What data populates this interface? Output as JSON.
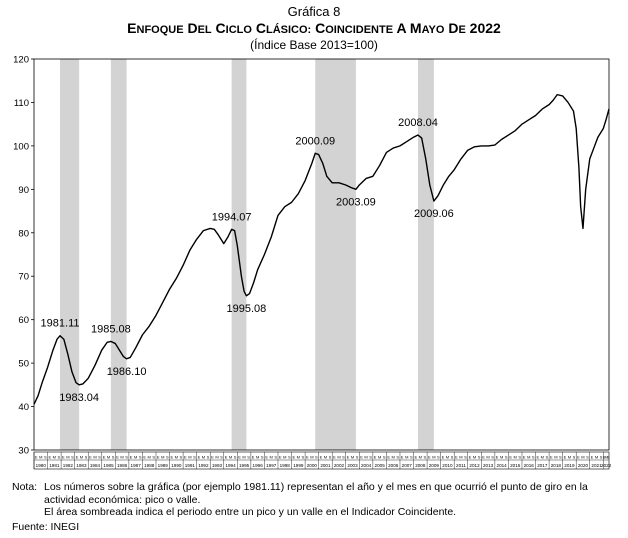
{
  "figure_label": "Gráfica 8",
  "title": "Enfoque del ciclo clásico: Coincidente a mayo de 2022",
  "subtitle": "(Índice Base 2013=100)",
  "note_label": "Nota:",
  "note_text": "Los números sobre la gráfica (por ejemplo 1981.11) representan el año y el mes en que ocurrió el punto de giro en la actividad económica: pico o valle.",
  "note_text_2": "El área sombreada indica el periodo entre un pico y un valle en el Indicador Coincidente.",
  "source": "Fuente: INEGI",
  "colors": {
    "line": "#000000",
    "shade": "#d3d3d3"
  },
  "chart_data": {
    "type": "line",
    "ylim": [
      30,
      120
    ],
    "y_ticks": [
      30,
      40,
      50,
      60,
      70,
      80,
      90,
      100,
      110,
      120
    ],
    "x_range": [
      1980.0,
      2022.42
    ],
    "x_sub_ticks": [
      "E",
      "M",
      "S"
    ],
    "x_tick_labels": [
      "1980",
      "1981",
      "1982",
      "1983",
      "1984",
      "1985",
      "1986",
      "1987",
      "1988",
      "1989",
      "1990",
      "1991",
      "1992",
      "1993",
      "1994",
      "1995",
      "1996",
      "1997",
      "1998",
      "1999",
      "2000",
      "2001",
      "2002",
      "2003",
      "2004",
      "2005",
      "2006",
      "2007",
      "2008",
      "2009",
      "2010",
      "2011",
      "2012",
      "2013",
      "2014",
      "2015",
      "2016",
      "2017",
      "2018",
      "2019",
      "2020",
      "2021",
      "2022"
    ],
    "shaded_periods": [
      [
        1981.92,
        1983.33
      ],
      [
        1985.67,
        1986.83
      ],
      [
        1994.58,
        1995.67
      ],
      [
        2000.75,
        2003.75
      ],
      [
        2008.33,
        2009.5
      ]
    ],
    "annotations": [
      {
        "text": "1981.11",
        "x": 1981.92,
        "y": 56.3,
        "pos": "above"
      },
      {
        "text": "1983.04",
        "x": 1983.33,
        "y": 45.0,
        "pos": "below"
      },
      {
        "text": "1985.08",
        "x": 1985.67,
        "y": 55.0,
        "pos": "above"
      },
      {
        "text": "1986.10",
        "x": 1986.83,
        "y": 51.0,
        "pos": "below"
      },
      {
        "text": "1994.07",
        "x": 1994.58,
        "y": 80.8,
        "pos": "above"
      },
      {
        "text": "1995.08",
        "x": 1995.67,
        "y": 65.5,
        "pos": "below"
      },
      {
        "text": "2000.09",
        "x": 2000.75,
        "y": 98.3,
        "pos": "above"
      },
      {
        "text": "2003.09",
        "x": 2003.75,
        "y": 90.0,
        "pos": "below"
      },
      {
        "text": "2008.04",
        "x": 2008.33,
        "y": 102.5,
        "pos": "above"
      },
      {
        "text": "2009.06",
        "x": 2009.5,
        "y": 87.3,
        "pos": "below"
      }
    ],
    "series": [
      {
        "x": [
          1980.0,
          1980.3,
          1980.6,
          1981.0,
          1981.4,
          1981.7,
          1981.92,
          1982.2,
          1982.5,
          1982.8,
          1983.1,
          1983.33,
          1983.6,
          1984.0,
          1984.5,
          1985.0,
          1985.4,
          1985.67,
          1986.0,
          1986.3,
          1986.6,
          1986.83,
          1987.1,
          1987.5,
          1988.0,
          1988.5,
          1989.0,
          1989.5,
          1990.0,
          1990.5,
          1991.0,
          1991.5,
          1992.0,
          1992.5,
          1993.0,
          1993.3,
          1993.6,
          1994.0,
          1994.3,
          1994.58,
          1994.8,
          1995.0,
          1995.3,
          1995.5,
          1995.67,
          1995.9,
          1996.2,
          1996.5,
          1997.0,
          1997.5,
          1998.0,
          1998.5,
          1999.0,
          1999.5,
          2000.0,
          2000.5,
          2000.75,
          2001.0,
          2001.3,
          2001.6,
          2002.0,
          2002.5,
          2003.0,
          2003.4,
          2003.75,
          2004.0,
          2004.5,
          2005.0,
          2005.5,
          2006.0,
          2006.5,
          2007.0,
          2007.5,
          2008.0,
          2008.33,
          2008.6,
          2008.9,
          2009.2,
          2009.5,
          2009.8,
          2010.2,
          2010.6,
          2011.0,
          2011.5,
          2012.0,
          2012.5,
          2013.0,
          2013.5,
          2014.0,
          2014.5,
          2015.0,
          2015.5,
          2016.0,
          2016.5,
          2017.0,
          2017.5,
          2018.0,
          2018.3,
          2018.6,
          2019.0,
          2019.4,
          2019.8,
          2020.0,
          2020.2,
          2020.33,
          2020.5,
          2020.7,
          2021.0,
          2021.3,
          2021.6,
          2022.0,
          2022.2,
          2022.42
        ],
        "y": [
          40.5,
          42.5,
          45.5,
          49,
          53,
          55.5,
          56.3,
          55.5,
          52,
          48,
          45.5,
          45,
          45.2,
          46.5,
          49.5,
          53,
          54.8,
          55,
          54.5,
          53,
          51.5,
          51,
          51.3,
          53.5,
          56.5,
          58.5,
          61,
          64,
          67,
          69.5,
          72.5,
          76,
          78.5,
          80.5,
          81,
          80.8,
          79.5,
          77.5,
          79,
          80.8,
          80.5,
          77,
          70,
          66.5,
          65.5,
          66,
          68.5,
          71.5,
          75,
          79,
          84,
          86,
          87,
          89,
          92,
          96,
          98.3,
          98,
          96,
          93,
          91.5,
          91.5,
          91,
          90.4,
          90,
          91,
          92.5,
          93,
          95.5,
          98.5,
          99.5,
          100,
          101,
          102,
          102.5,
          101.8,
          97,
          91,
          87.3,
          88.5,
          91,
          93,
          94.5,
          97,
          99,
          99.8,
          100,
          100,
          100.2,
          101.5,
          102.5,
          103.5,
          105,
          106,
          107,
          108.5,
          109.5,
          110.5,
          111.8,
          111.5,
          110,
          108,
          104,
          95,
          86,
          81,
          90,
          97,
          99.5,
          102,
          104,
          106,
          108.5
        ]
      }
    ]
  }
}
